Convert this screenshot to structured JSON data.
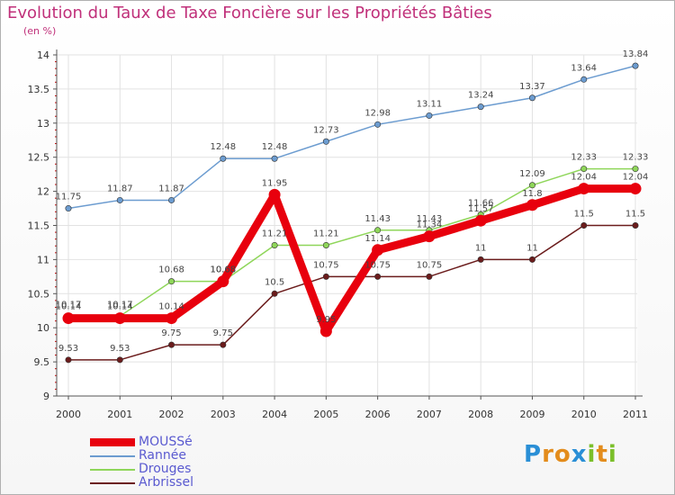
{
  "chart_data": {
    "type": "line",
    "title": "Evolution du Taux de Taxe Foncière sur les Propriétés Bâties",
    "subtitle": "(en %)",
    "categories": [
      "2000",
      "2001",
      "2002",
      "2003",
      "2004",
      "2005",
      "2006",
      "2007",
      "2008",
      "2009",
      "2010",
      "2011"
    ],
    "ylim": [
      9,
      14
    ],
    "yticks": [
      "9",
      "9.5",
      "10",
      "10.5",
      "11",
      "11.5",
      "12",
      "12.5",
      "13",
      "13.5",
      "14"
    ],
    "grid": true,
    "series": [
      {
        "name": "MOUSSé",
        "color": "#e8000d",
        "values": [
          10.14,
          10.14,
          10.14,
          10.68,
          11.95,
          9.95,
          11.14,
          11.34,
          11.57,
          11.8,
          12.04,
          12.04
        ],
        "labels": [
          "10.14",
          "10.14",
          "10.14",
          "10.68",
          "11.95",
          "9.95",
          "11.14",
          "11.34",
          "11.57",
          "11.8",
          "12.04",
          "12.04"
        ]
      },
      {
        "name": "Rannée",
        "color": "#6c9cd0",
        "values": [
          11.75,
          11.87,
          11.87,
          12.48,
          12.48,
          12.73,
          12.98,
          13.11,
          13.24,
          13.37,
          13.64,
          13.84
        ],
        "labels": [
          "11.75",
          "11.87",
          "11.87",
          "12.48",
          "12.48",
          "12.73",
          "12.98",
          "13.11",
          "13.24",
          "13.37",
          "13.64",
          "13.84"
        ]
      },
      {
        "name": "Drouges",
        "color": "#8fd65a",
        "values": [
          10.17,
          10.17,
          10.68,
          10.68,
          11.21,
          11.21,
          11.43,
          11.43,
          11.66,
          12.09,
          12.33,
          12.33
        ],
        "labels": [
          "10.17",
          "10.17",
          "10.68",
          "10.68",
          "11.21",
          "11.21",
          "11.43",
          "11.43",
          "11.66",
          "12.09",
          "12.33",
          "12.33"
        ]
      },
      {
        "name": "Arbrissel",
        "color": "#6b1c1c",
        "values": [
          9.53,
          9.53,
          9.75,
          9.75,
          10.5,
          10.75,
          10.75,
          10.75,
          11,
          11,
          11.5,
          11.5
        ],
        "labels": [
          "9.53",
          "9.53",
          "9.75",
          "9.75",
          "10.5",
          "10.75",
          "10.75",
          "10.75",
          "11",
          "11",
          "11.5",
          "11.5"
        ]
      }
    ]
  },
  "logo": {
    "letters": [
      "P",
      "r",
      "o",
      "x",
      "i",
      "t",
      "i"
    ],
    "colors": [
      "#2a8fd6",
      "#e38c1c",
      "#e38c1c",
      "#2a8fd6",
      "#7bbf2a",
      "#e38c1c",
      "#7bbf2a"
    ]
  }
}
